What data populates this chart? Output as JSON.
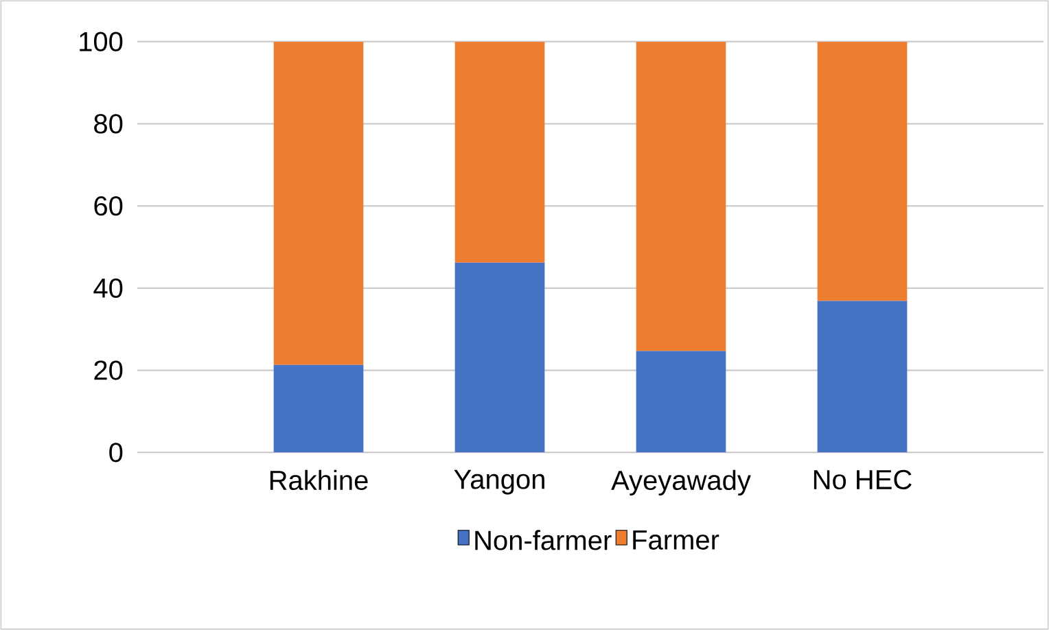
{
  "chart_data": {
    "type": "bar",
    "stacked": true,
    "categories": [
      "Rakhine",
      "Yangon",
      "Ayeyawady",
      "No HEC"
    ],
    "series": [
      {
        "name": "Non-farmer",
        "color": "#4472c4",
        "values": [
          21.3,
          46.2,
          24.7,
          36.9
        ]
      },
      {
        "name": "Farmer",
        "color": "#ed7d31",
        "values": [
          78.7,
          53.8,
          75.3,
          63.1
        ]
      }
    ],
    "ylim": [
      0,
      100
    ],
    "yticks": [
      0,
      20,
      40,
      60,
      80,
      100
    ],
    "grid": "y",
    "legend": "bottom"
  }
}
